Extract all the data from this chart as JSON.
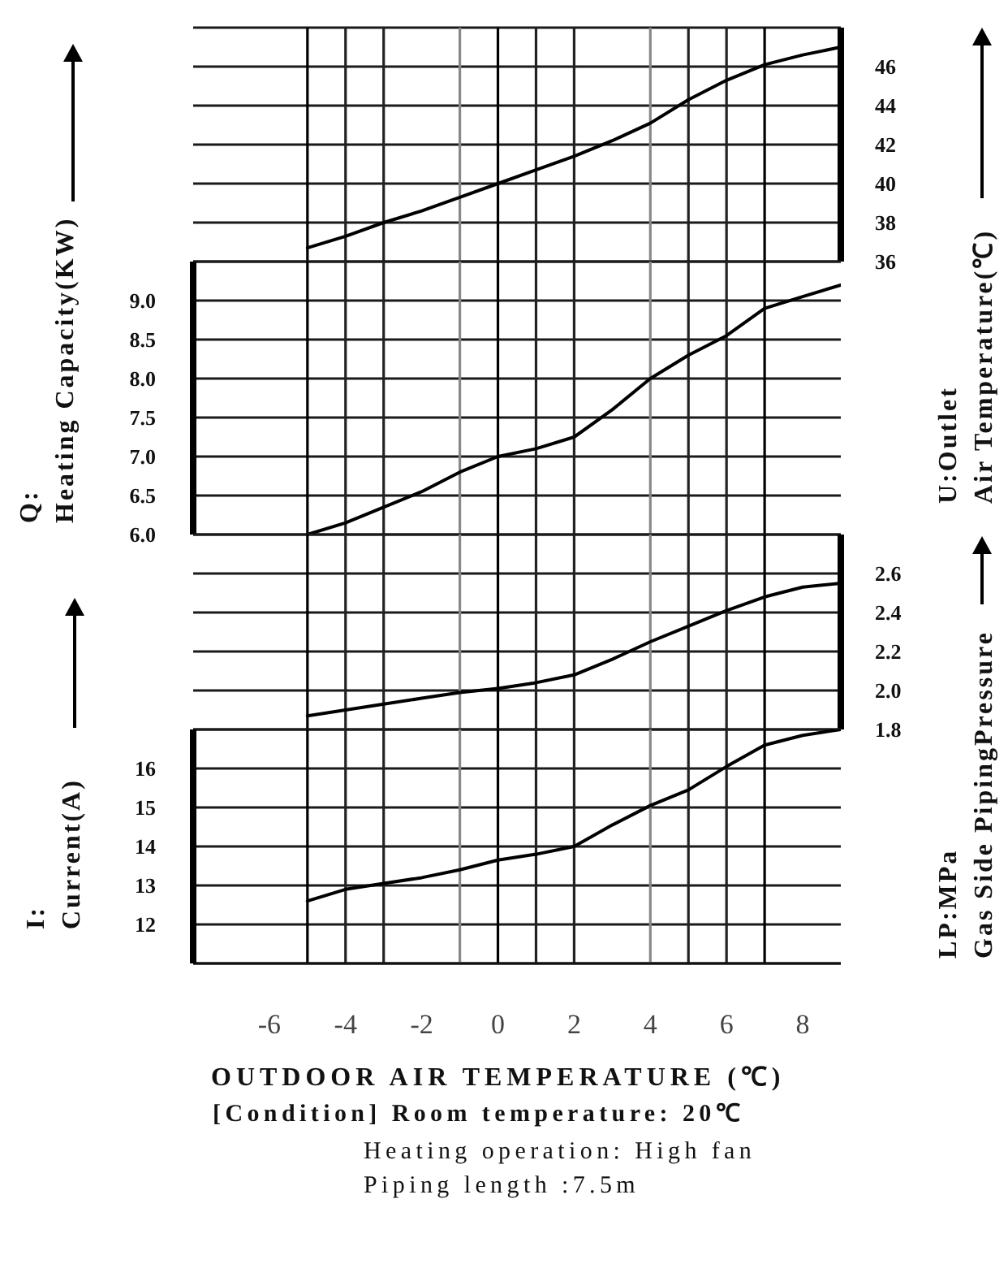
{
  "chart_data": [
    {
      "type": "line",
      "x": [
        -5,
        -4,
        -3,
        -2,
        -1,
        0,
        1,
        2,
        3,
        4,
        5,
        6,
        7,
        8,
        9
      ],
      "series": [
        {
          "color": "#000000",
          "axis": "y2",
          "values": [
            36.7,
            37.3,
            38.0,
            38.6,
            39.3,
            40.0,
            40.7,
            41.4,
            42.2,
            43.1,
            44.3,
            45.3,
            46.1,
            46.6,
            47.0
          ]
        }
      ],
      "xlim": [
        -8,
        9
      ],
      "y2lim": [
        36,
        48
      ],
      "y2ticks": [
        36,
        38,
        40,
        42,
        44,
        46
      ],
      "y2label": "U:Outlet\nAir Temperature(℃)",
      "tick_labels": "y2",
      "grid": "y",
      "ref_lines": [
        {
          "axis": "x",
          "value": -5,
          "color": "#000000"
        },
        {
          "axis": "x",
          "value": -4,
          "color": "#222222"
        },
        {
          "axis": "x",
          "value": -3,
          "color": "#222222"
        },
        {
          "axis": "x",
          "value": -1,
          "color": "#888888"
        },
        {
          "axis": "x",
          "value": 0,
          "color": "#000000"
        },
        {
          "axis": "x",
          "value": 1,
          "color": "#222222"
        },
        {
          "axis": "x",
          "value": 2,
          "color": "#222222"
        },
        {
          "axis": "x",
          "value": 4,
          "color": "#888888"
        },
        {
          "axis": "x",
          "value": 5,
          "color": "#222222"
        },
        {
          "axis": "x",
          "value": 6,
          "color": "#222222"
        },
        {
          "axis": "x",
          "value": 7,
          "color": "#000000"
        }
      ]
    },
    {
      "type": "line",
      "x": [
        -5,
        -4,
        -3,
        -2,
        -1,
        0,
        1,
        2,
        3,
        4,
        5,
        6,
        7,
        8,
        9
      ],
      "series": [
        {
          "color": "#000000",
          "values": [
            6.0,
            6.15,
            6.35,
            6.55,
            6.8,
            7.0,
            7.1,
            7.25,
            7.6,
            8.0,
            8.3,
            8.55,
            8.9,
            9.05,
            9.2
          ]
        }
      ],
      "xlim": [
        -8,
        9
      ],
      "ylim": [
        6,
        9.5
      ],
      "yticks": [
        {
          "value": 6,
          "label": "6.0"
        },
        6.5,
        {
          "value": 7,
          "label": "7.0"
        },
        7.5,
        {
          "value": 8,
          "label": "8.0"
        },
        8.5,
        {
          "value": 9,
          "label": "9.0"
        }
      ],
      "ylabel": "Q:\nHeating Capacity(KW)",
      "tick_labels": "y",
      "grid": "y",
      "ref_lines": [
        {
          "axis": "x",
          "value": -5,
          "color": "#000000"
        },
        {
          "axis": "x",
          "value": -4,
          "color": "#222222"
        },
        {
          "axis": "x",
          "value": -3,
          "color": "#222222"
        },
        {
          "axis": "x",
          "value": -1,
          "color": "#888888"
        },
        {
          "axis": "x",
          "value": 0,
          "color": "#000000"
        },
        {
          "axis": "x",
          "value": 1,
          "color": "#222222"
        },
        {
          "axis": "x",
          "value": 2,
          "color": "#222222"
        },
        {
          "axis": "x",
          "value": 4,
          "color": "#888888"
        },
        {
          "axis": "x",
          "value": 5,
          "color": "#222222"
        },
        {
          "axis": "x",
          "value": 6,
          "color": "#222222"
        },
        {
          "axis": "x",
          "value": 7,
          "color": "#000000"
        }
      ]
    },
    {
      "type": "line",
      "x": [
        -5,
        -4,
        -3,
        -2,
        -1,
        0,
        1,
        2,
        3,
        4,
        5,
        6,
        7,
        8,
        9
      ],
      "series": [
        {
          "color": "#000000",
          "axis": "y2",
          "values": [
            1.87,
            1.9,
            1.93,
            1.96,
            1.99,
            2.01,
            2.04,
            2.08,
            2.16,
            2.25,
            2.33,
            2.41,
            2.48,
            2.53,
            2.55
          ]
        }
      ],
      "xlim": [
        -8,
        9
      ],
      "y2lim": [
        1.8,
        2.8
      ],
      "y2ticks": [
        1.8,
        {
          "value": 2,
          "label": "2.0"
        },
        2.2,
        2.4,
        2.6
      ],
      "y2label": "LP:MPa\nGas Side PipingPressure",
      "tick_labels": "y2",
      "grid": "y",
      "ref_lines": [
        {
          "axis": "x",
          "value": -5,
          "color": "#000000"
        },
        {
          "axis": "x",
          "value": -4,
          "color": "#222222"
        },
        {
          "axis": "x",
          "value": -3,
          "color": "#222222"
        },
        {
          "axis": "x",
          "value": -1,
          "color": "#888888"
        },
        {
          "axis": "x",
          "value": 0,
          "color": "#000000"
        },
        {
          "axis": "x",
          "value": 1,
          "color": "#222222"
        },
        {
          "axis": "x",
          "value": 2,
          "color": "#222222"
        },
        {
          "axis": "x",
          "value": 4,
          "color": "#888888"
        },
        {
          "axis": "x",
          "value": 5,
          "color": "#222222"
        },
        {
          "axis": "x",
          "value": 6,
          "color": "#222222"
        },
        {
          "axis": "x",
          "value": 7,
          "color": "#000000"
        }
      ]
    },
    {
      "type": "line",
      "x": [
        -5,
        -4,
        -3,
        -2,
        -1,
        0,
        1,
        2,
        3,
        4,
        5,
        6,
        7,
        8,
        9
      ],
      "series": [
        {
          "color": "#000000",
          "values": [
            12.6,
            12.9,
            13.05,
            13.2,
            13.4,
            13.65,
            13.8,
            14.0,
            14.55,
            15.05,
            15.45,
            16.05,
            16.6,
            16.85,
            17.0
          ]
        }
      ],
      "xlim": [
        -8,
        9
      ],
      "xticks": [
        -6,
        -4,
        -2,
        0,
        2,
        4,
        6,
        8
      ],
      "ylim": [
        11,
        17
      ],
      "yticks": [
        12,
        13,
        14,
        15,
        16
      ],
      "ylabel": "I:\nCurrent(A)",
      "grid": "y",
      "xlabel": "OUTDOOR AIR TEMPERATURE (℃)",
      "annotations": [
        "[Condition] Room temperature: 20℃",
        "Heating operation: High fan",
        "Piping length :7.5m"
      ],
      "ref_lines": [
        {
          "axis": "x",
          "value": -5,
          "color": "#000000"
        },
        {
          "axis": "x",
          "value": -4,
          "color": "#222222"
        },
        {
          "axis": "x",
          "value": -3,
          "color": "#222222"
        },
        {
          "axis": "x",
          "value": -1,
          "color": "#888888"
        },
        {
          "axis": "x",
          "value": 0,
          "color": "#000000"
        },
        {
          "axis": "x",
          "value": 1,
          "color": "#222222"
        },
        {
          "axis": "x",
          "value": 2,
          "color": "#222222"
        },
        {
          "axis": "x",
          "value": 4,
          "color": "#888888"
        },
        {
          "axis": "x",
          "value": 5,
          "color": "#222222"
        },
        {
          "axis": "x",
          "value": 6,
          "color": "#222222"
        },
        {
          "axis": "x",
          "value": 7,
          "color": "#000000"
        }
      ]
    }
  ]
}
